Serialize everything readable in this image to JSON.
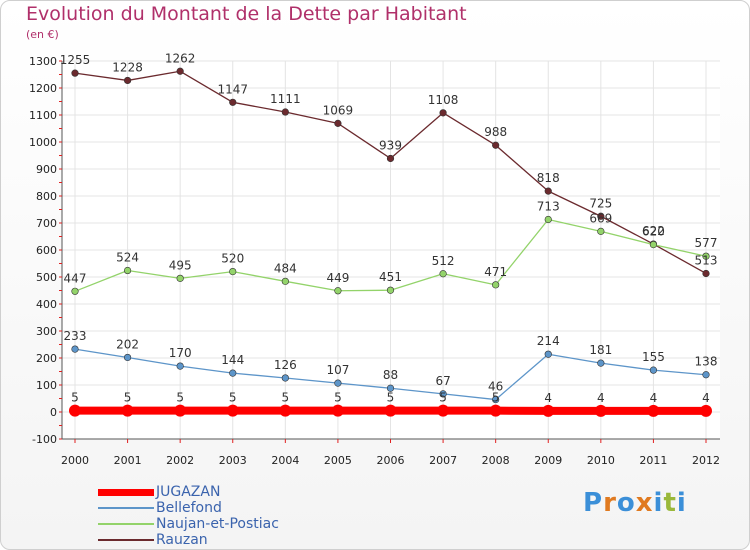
{
  "brand": {
    "text": "Proxiti",
    "letter_colors": [
      "#3b8fd8",
      "#e07a20",
      "#3b8fd8",
      "#e07a20",
      "#3b8fd8",
      "#9ab83a",
      "#3b8fd8"
    ]
  },
  "chart_data": {
    "type": "line",
    "title": "Evolution du Montant de la Dette par Habitant",
    "subtitle": "(en €)",
    "xlabel": "",
    "ylabel": "",
    "x": [
      "2000",
      "2001",
      "2002",
      "2003",
      "2004",
      "2005",
      "2006",
      "2007",
      "2008",
      "2009",
      "2010",
      "2011",
      "2012"
    ],
    "ylim": [
      -100,
      1300
    ],
    "yticks": [
      -100,
      0,
      100,
      200,
      300,
      400,
      500,
      600,
      700,
      800,
      900,
      1000,
      1100,
      1200,
      1300
    ],
    "grid": true,
    "legend_position": "bottom-left",
    "series": [
      {
        "name": "JUGAZAN",
        "color": "#ff0000",
        "values": [
          5,
          5,
          5,
          5,
          5,
          5,
          5,
          5,
          5,
          4,
          4,
          4,
          4
        ]
      },
      {
        "name": "Bellefond",
        "color": "#5d95c9",
        "values": [
          233,
          202,
          170,
          144,
          126,
          107,
          88,
          67,
          46,
          214,
          181,
          155,
          138
        ]
      },
      {
        "name": "Naujan-et-Postiac",
        "color": "#93d36a",
        "values": [
          447,
          524,
          495,
          520,
          484,
          449,
          451,
          512,
          471,
          713,
          669,
          620,
          577
        ]
      },
      {
        "name": "Rauzan",
        "color": "#6b2a2e",
        "values": [
          1255,
          1228,
          1262,
          1147,
          1111,
          1069,
          939,
          1108,
          988,
          818,
          725,
          622,
          513
        ]
      }
    ]
  }
}
